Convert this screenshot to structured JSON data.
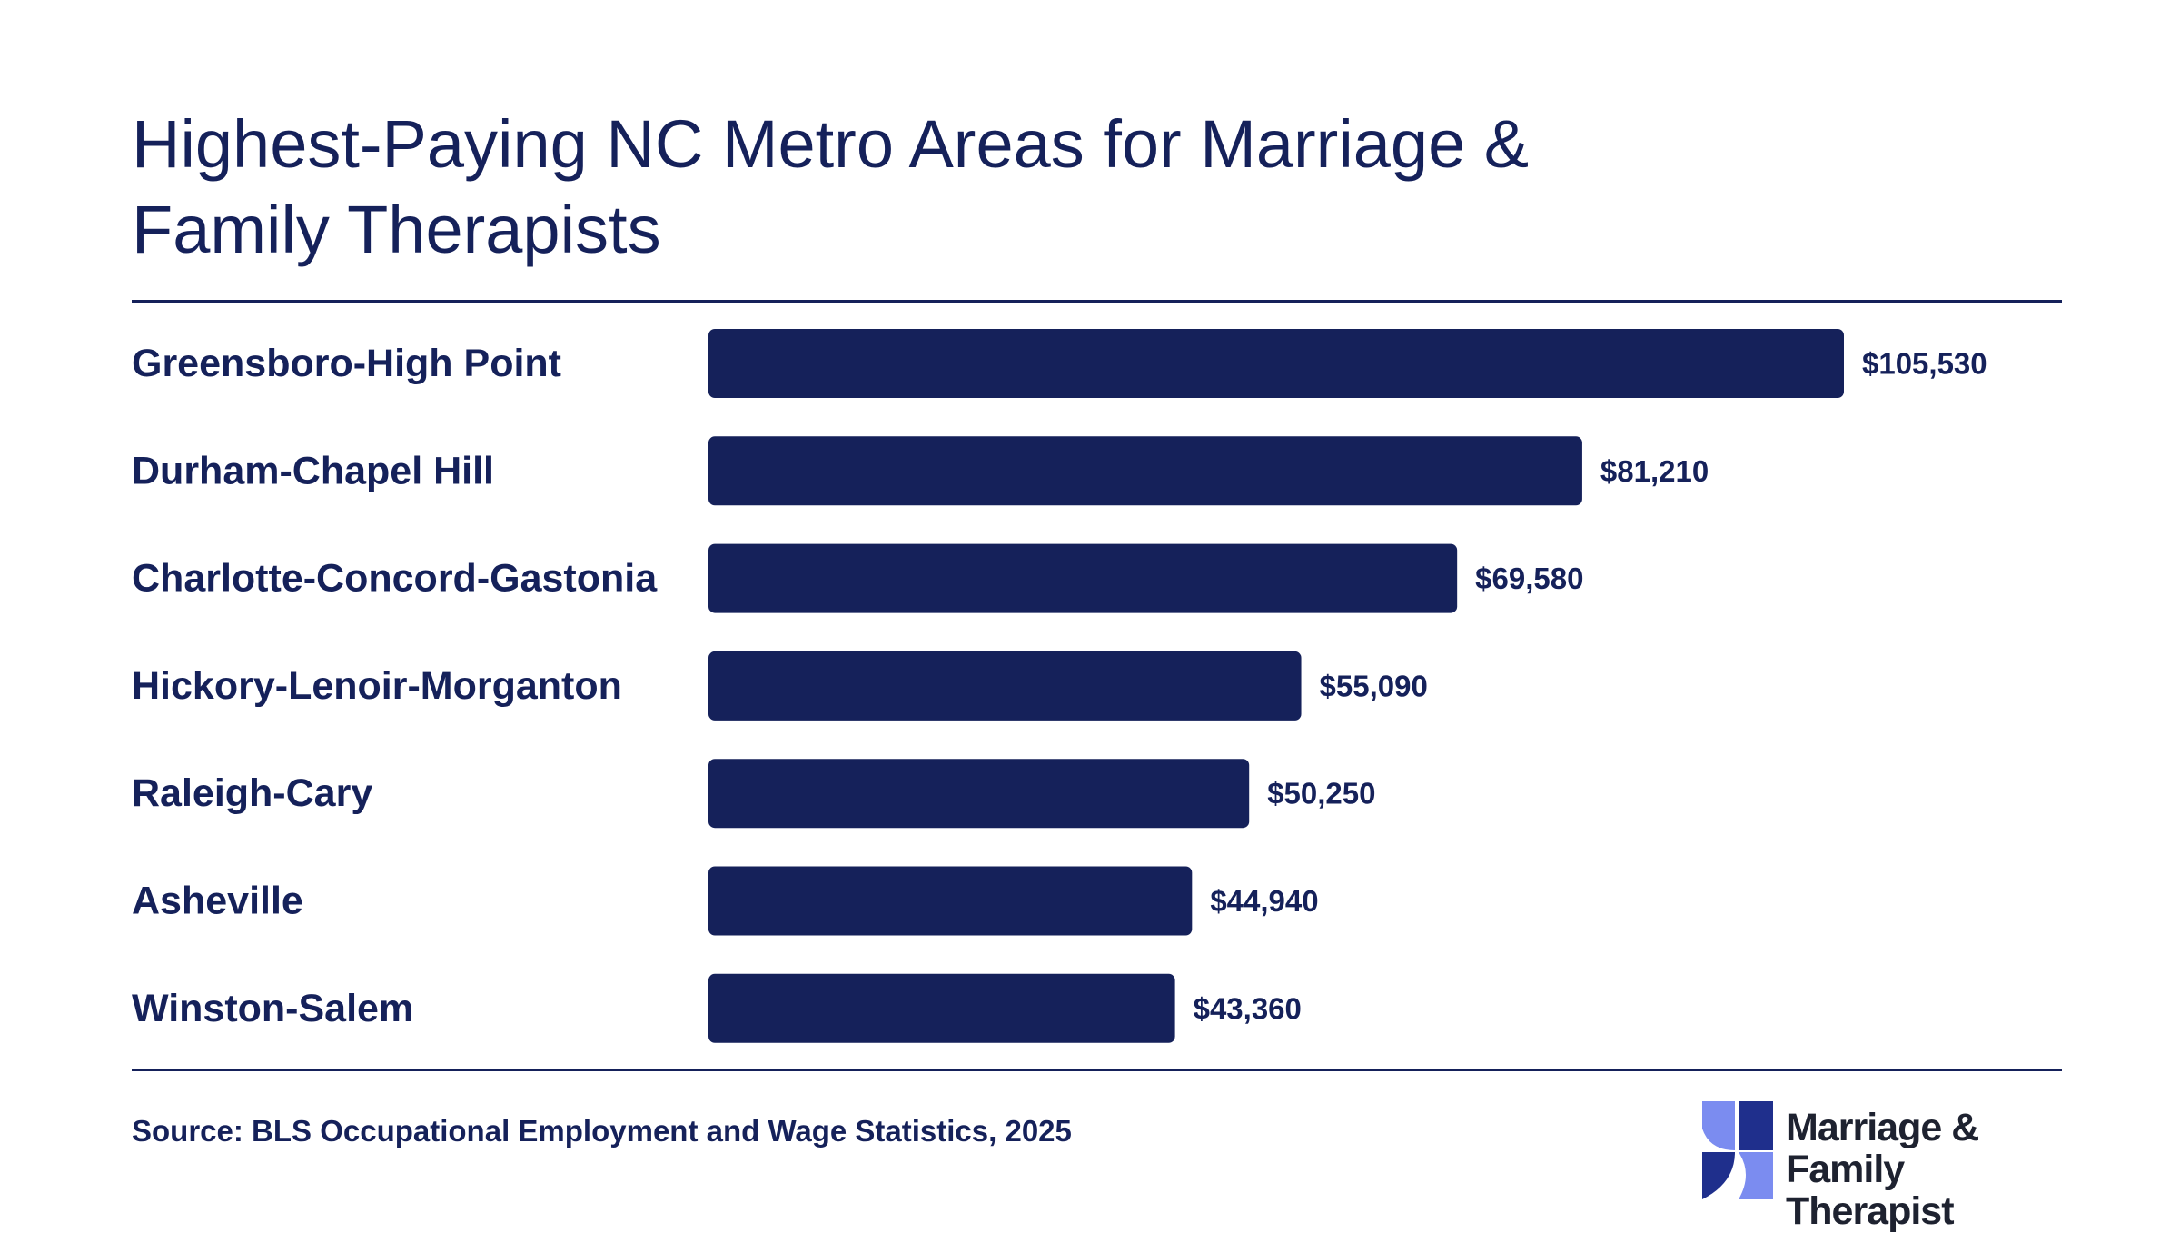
{
  "title": "Highest-Paying NC Metro Areas for Marriage & Family Therapists",
  "source": "Source: BLS Occupational Employment and Wage Statistics, 2025",
  "logo": {
    "line1": "Marriage & Family",
    "line2": "Therapist"
  },
  "colors": {
    "bar": "#15215a",
    "text": "#15215a",
    "logo_light": "#7b8cf0",
    "logo_dark": "#1f2f8c"
  },
  "chart_data": {
    "type": "bar",
    "orientation": "horizontal",
    "title": "Highest-Paying NC Metro Areas for Marriage & Family Therapists",
    "categories": [
      "Greensboro-High Point",
      "Durham-Chapel Hill",
      "Charlotte-Concord-Gastonia",
      "Hickory-Lenoir-Morganton",
      "Raleigh-Cary",
      "Asheville",
      "Winston-Salem"
    ],
    "values": [
      105530,
      81210,
      69580,
      55090,
      50250,
      44940,
      43360
    ],
    "value_labels": [
      "$105,530",
      "$81,210",
      "$69,580",
      "$55,090",
      "$50,250",
      "$44,940",
      "$43,360"
    ],
    "xlim": [
      0,
      105530
    ],
    "grid": false,
    "legend": "none"
  }
}
